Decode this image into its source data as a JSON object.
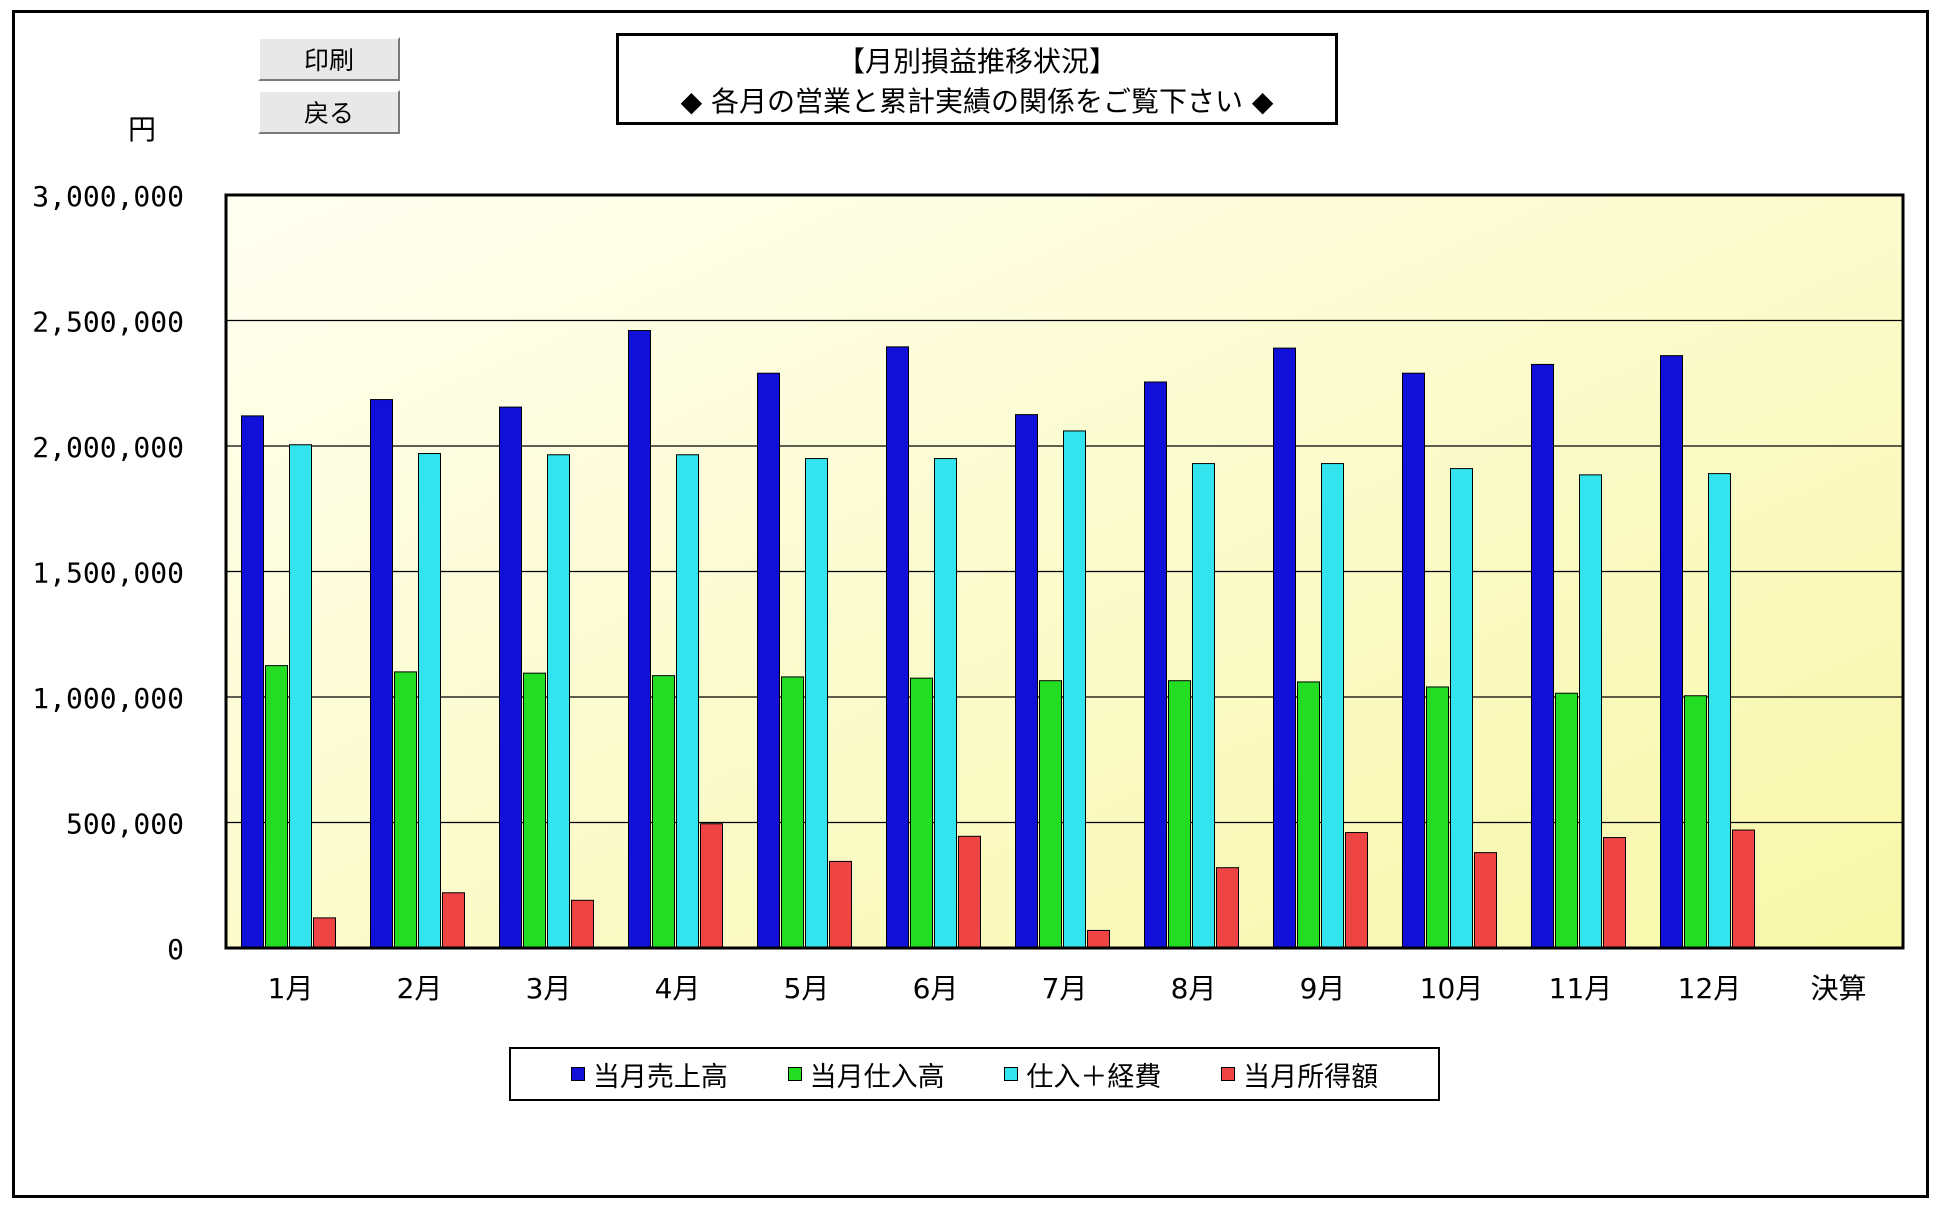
{
  "buttons": {
    "print": "印刷",
    "back": "戻る"
  },
  "title": {
    "line1": "【月別損益推移状況】",
    "line2": "◆ 各月の営業と累計実績の関係をご覧下さい ◆"
  },
  "y_unit": "円",
  "colors": {
    "sales": "#1010d8",
    "purchases": "#22dd22",
    "purchases_expenses": "#33e4ee",
    "income": "#ee4444",
    "plot_bg_light": "#fffff2",
    "plot_bg_dark": "#f7f7a8"
  },
  "chart_data": {
    "type": "bar",
    "title": "【月別損益推移状況】",
    "ylabel": "円",
    "ylim": [
      0,
      3000000
    ],
    "yticks": [
      0,
      500000,
      1000000,
      1500000,
      2000000,
      2500000,
      3000000
    ],
    "ytick_labels": [
      "0",
      "500,000",
      "1,000,000",
      "1,500,000",
      "2,000,000",
      "2,500,000",
      "3,000,000"
    ],
    "grid": true,
    "legend_position": "bottom",
    "categories": [
      "1月",
      "2月",
      "3月",
      "4月",
      "5月",
      "6月",
      "7月",
      "8月",
      "9月",
      "10月",
      "11月",
      "12月",
      "決算"
    ],
    "series": [
      {
        "name": "当月売上高",
        "color": "#1010d8",
        "values": [
          2120000,
          2185000,
          2155000,
          2460000,
          2290000,
          2395000,
          2125000,
          2255000,
          2390000,
          2290000,
          2325000,
          2360000,
          null
        ]
      },
      {
        "name": "当月仕入高",
        "color": "#22dd22",
        "values": [
          1125000,
          1100000,
          1095000,
          1085000,
          1080000,
          1075000,
          1065000,
          1065000,
          1060000,
          1040000,
          1015000,
          1005000,
          null
        ]
      },
      {
        "name": "仕入＋経費",
        "color": "#33e4ee",
        "values": [
          2005000,
          1970000,
          1965000,
          1965000,
          1950000,
          1950000,
          2060000,
          1930000,
          1930000,
          1910000,
          1885000,
          1890000,
          null
        ]
      },
      {
        "name": "当月所得額",
        "color": "#ee4444",
        "values": [
          120000,
          220000,
          190000,
          495000,
          345000,
          445000,
          70000,
          320000,
          460000,
          380000,
          440000,
          470000,
          null
        ]
      }
    ]
  }
}
